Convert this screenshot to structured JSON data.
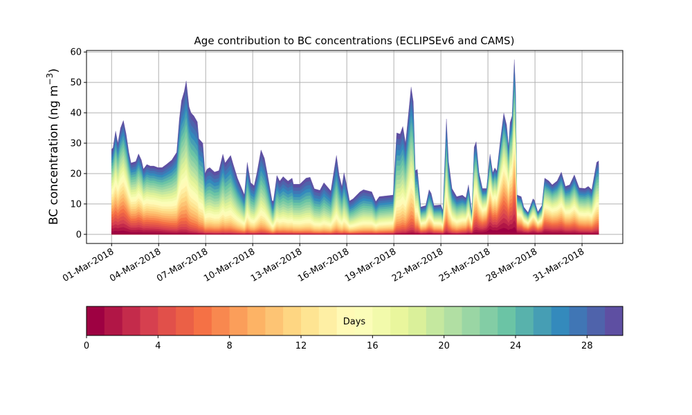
{
  "chart_data": {
    "type": "area",
    "stacked": true,
    "title": "Age contribution to BC concentrations (ECLIPSEv6 and CAMS)",
    "ylabel": "BC concentration (ng m",
    "ylabel_sup": "−3",
    "ylabel_close": ")",
    "xlabel": "",
    "ylim": [
      -3,
      60.5
    ],
    "xlim_days": [
      -1.6,
      32.6
    ],
    "yticks": [
      0,
      10,
      20,
      30,
      40,
      50,
      60
    ],
    "xtick_days": [
      0,
      3,
      6,
      9,
      12,
      15,
      18,
      21,
      24,
      27,
      30
    ],
    "xtick_labels": [
      "01-Mar-2018",
      "04-Mar-2018",
      "07-Mar-2018",
      "10-Mar-2018",
      "13-Mar-2018",
      "16-Mar-2018",
      "19-Mar-2018",
      "22-Mar-2018",
      "25-Mar-2018",
      "28-Mar-2018",
      "31-Mar-2018"
    ],
    "grid": true,
    "total_series_note": "day offset from 01-Mar-2018, total concentration",
    "total": [
      [
        0,
        28
      ],
      [
        0.09,
        28.5
      ],
      [
        0.26,
        34
      ],
      [
        0.4,
        30
      ],
      [
        0.57,
        35
      ],
      [
        0.75,
        37.5
      ],
      [
        0.93,
        33
      ],
      [
        1.1,
        27
      ],
      [
        1.24,
        23.5
      ],
      [
        1.54,
        24
      ],
      [
        1.72,
        26.5
      ],
      [
        1.9,
        24.5
      ],
      [
        2.03,
        21.5
      ],
      [
        2.25,
        23
      ],
      [
        2.47,
        22.5
      ],
      [
        2.69,
        22.5
      ],
      [
        2.96,
        22
      ],
      [
        3.22,
        22
      ],
      [
        3.49,
        23
      ],
      [
        3.84,
        24.5
      ],
      [
        4.15,
        27
      ],
      [
        4.32,
        38
      ],
      [
        4.46,
        44
      ],
      [
        4.63,
        47
      ],
      [
        4.76,
        50.5
      ],
      [
        4.94,
        42
      ],
      [
        5.07,
        40
      ],
      [
        5.25,
        39
      ],
      [
        5.47,
        37
      ],
      [
        5.56,
        31.5
      ],
      [
        5.82,
        30
      ],
      [
        5.96,
        20
      ],
      [
        6.09,
        21.5
      ],
      [
        6.26,
        22
      ],
      [
        6.57,
        20.5
      ],
      [
        6.84,
        21
      ],
      [
        7.1,
        26.4
      ],
      [
        7.24,
        23.5
      ],
      [
        7.59,
        26
      ],
      [
        7.76,
        23
      ],
      [
        8.03,
        18.5
      ],
      [
        8.47,
        13
      ],
      [
        8.65,
        23.7
      ],
      [
        8.87,
        17
      ],
      [
        9.09,
        16
      ],
      [
        9.26,
        20
      ],
      [
        9.53,
        27.8
      ],
      [
        9.75,
        25
      ],
      [
        9.93,
        20
      ],
      [
        10.24,
        11
      ],
      [
        10.32,
        11
      ],
      [
        10.54,
        19.4
      ],
      [
        10.72,
        17.5
      ],
      [
        10.94,
        19
      ],
      [
        11.25,
        17.5
      ],
      [
        11.51,
        18.5
      ],
      [
        11.6,
        16.5
      ],
      [
        12,
        16.5
      ],
      [
        12.4,
        18.5
      ],
      [
        12.66,
        18.8
      ],
      [
        12.93,
        15
      ],
      [
        13.28,
        14.5
      ],
      [
        13.54,
        17
      ],
      [
        13.98,
        14.3
      ],
      [
        14.34,
        26
      ],
      [
        14.51,
        19.5
      ],
      [
        14.69,
        15.7
      ],
      [
        14.82,
        20.3
      ],
      [
        15,
        16
      ],
      [
        15.18,
        11
      ],
      [
        15.4,
        11.7
      ],
      [
        15.84,
        14
      ],
      [
        16.06,
        14.7
      ],
      [
        16.59,
        14
      ],
      [
        16.85,
        10.8
      ],
      [
        17.07,
        12.4
      ],
      [
        17.91,
        12.9
      ],
      [
        17.96,
        13
      ],
      [
        18.18,
        33.4
      ],
      [
        18.4,
        33
      ],
      [
        18.57,
        35.5
      ],
      [
        18.75,
        30
      ],
      [
        19.1,
        48.5
      ],
      [
        19.24,
        43.6
      ],
      [
        19.37,
        21
      ],
      [
        19.5,
        21.4
      ],
      [
        19.72,
        9
      ],
      [
        20.03,
        9.5
      ],
      [
        20.25,
        14.7
      ],
      [
        20.38,
        13.5
      ],
      [
        20.56,
        9.5
      ],
      [
        21,
        9.7
      ],
      [
        21.13,
        7.9
      ],
      [
        21.35,
        38
      ],
      [
        21.49,
        24
      ],
      [
        21.71,
        15.1
      ],
      [
        22.01,
        12.4
      ],
      [
        22.37,
        12.9
      ],
      [
        22.59,
        12
      ],
      [
        22.76,
        16.3
      ],
      [
        22.98,
        7.2
      ],
      [
        23.12,
        28.7
      ],
      [
        23.25,
        30.5
      ],
      [
        23.43,
        20.3
      ],
      [
        23.65,
        15.1
      ],
      [
        23.91,
        15.1
      ],
      [
        24.13,
        26.4
      ],
      [
        24.31,
        20.3
      ],
      [
        24.44,
        21.9
      ],
      [
        24.57,
        20.8
      ],
      [
        24.79,
        30.9
      ],
      [
        25.01,
        39.9
      ],
      [
        25.19,
        36
      ],
      [
        25.32,
        28.7
      ],
      [
        25.41,
        36.8
      ],
      [
        25.54,
        39
      ],
      [
        25.68,
        57.5
      ],
      [
        25.76,
        48
      ],
      [
        25.85,
        13
      ],
      [
        26.12,
        12.4
      ],
      [
        26.29,
        9
      ],
      [
        26.56,
        7.2
      ],
      [
        26.87,
        11.7
      ],
      [
        26.96,
        11.3
      ],
      [
        27.18,
        7.4
      ],
      [
        27.44,
        9.5
      ],
      [
        27.62,
        18.5
      ],
      [
        27.88,
        17.6
      ],
      [
        28.1,
        16.3
      ],
      [
        28.41,
        17.6
      ],
      [
        28.68,
        20.5
      ],
      [
        28.94,
        15.8
      ],
      [
        29.21,
        16.3
      ],
      [
        29.51,
        19.6
      ],
      [
        29.82,
        15.3
      ],
      [
        30.18,
        15.1
      ],
      [
        30.4,
        15.8
      ],
      [
        30.62,
        14.7
      ],
      [
        30.93,
        23.7
      ],
      [
        31.06,
        24.2
      ]
    ],
    "age_shape_exponent": [
      [
        0,
        1.0
      ],
      [
        3,
        1.1
      ],
      [
        6,
        1.8
      ],
      [
        10,
        2.0
      ],
      [
        14,
        2.2
      ],
      [
        18,
        1.8
      ],
      [
        20,
        1.3
      ],
      [
        22,
        1.6
      ],
      [
        24,
        0.8
      ],
      [
        25.5,
        0.9
      ],
      [
        26,
        1.0
      ],
      [
        27.5,
        1.0
      ],
      [
        31.06,
        1.3
      ]
    ],
    "colorbar": {
      "label": "Days",
      "range": [
        0,
        30
      ],
      "n_bins": 30,
      "ticks": [
        0,
        4,
        8,
        12,
        16,
        20,
        24,
        28
      ],
      "tick_labels": [
        "0",
        "4",
        "8",
        "12",
        "16",
        "20",
        "24",
        "28"
      ],
      "colormap_anchors": [
        "#9e0142",
        "#d53e4f",
        "#f46d43",
        "#fdae61",
        "#fee08b",
        "#ffffbf",
        "#e6f598",
        "#abdda4",
        "#66c2a5",
        "#3288bd",
        "#5e4fa2"
      ]
    }
  }
}
